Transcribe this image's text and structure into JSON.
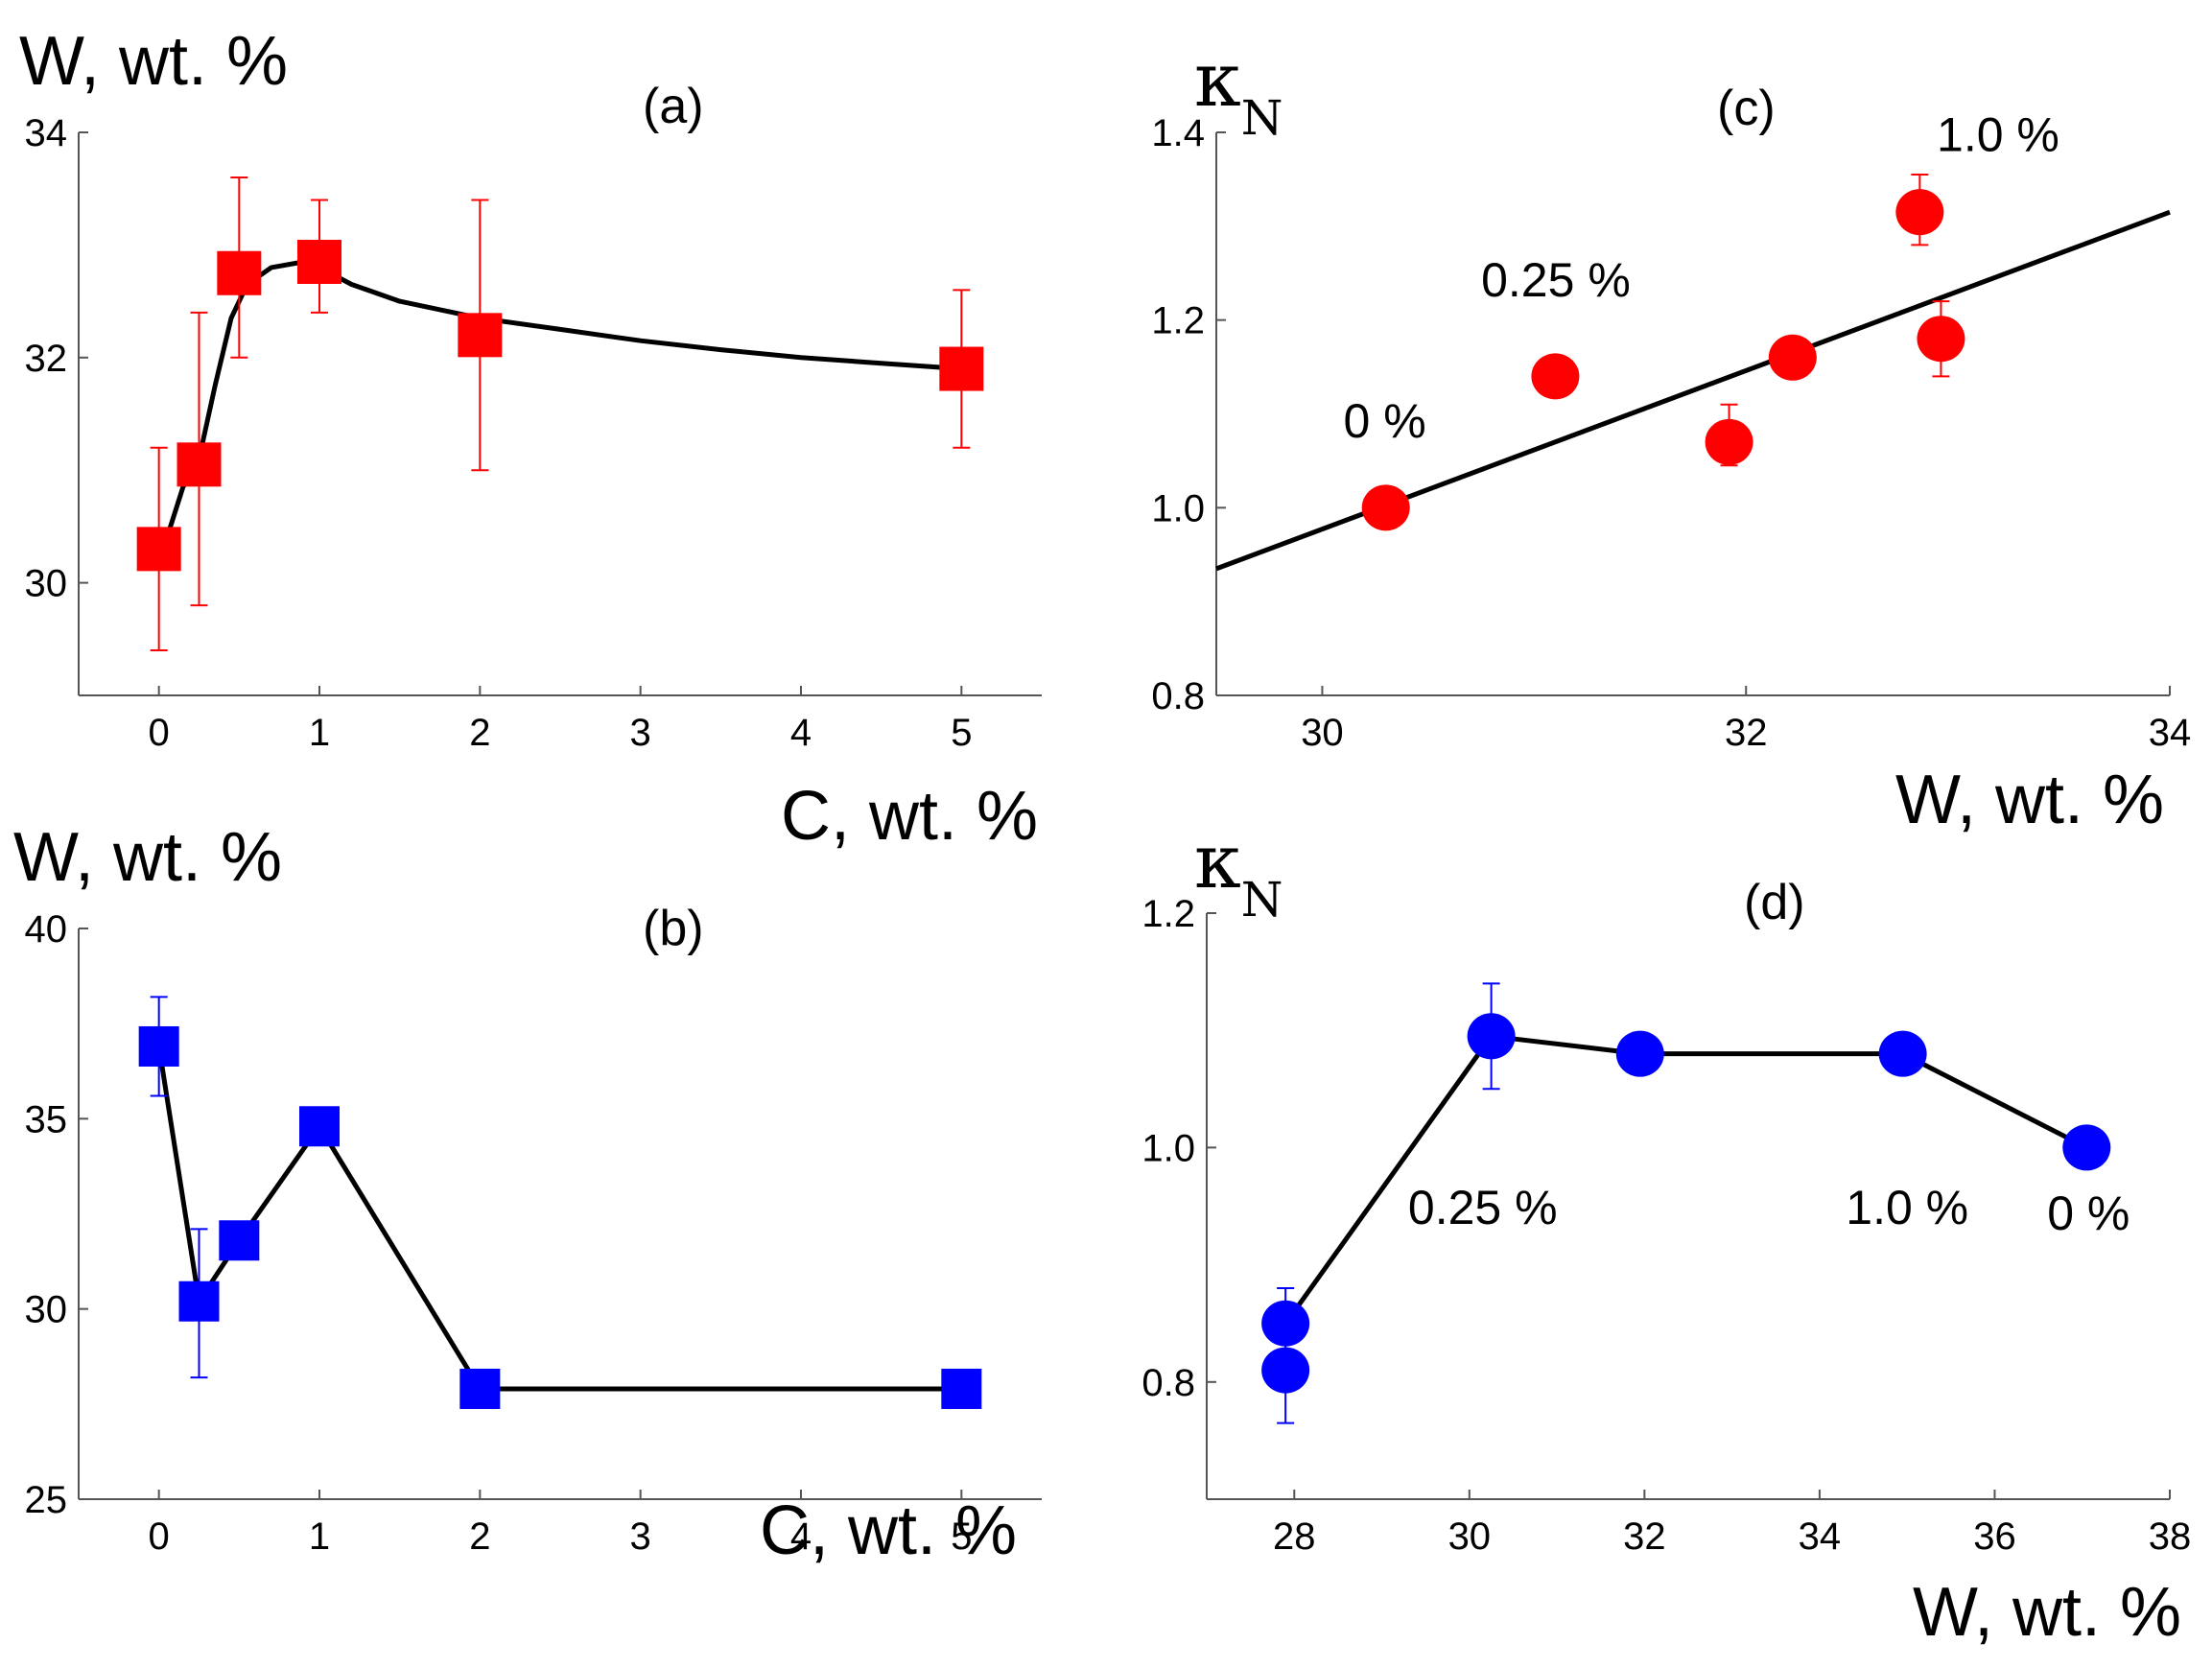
{
  "colors": {
    "red": "#ff0000",
    "blue": "#0000ff",
    "line": "#000000",
    "axis": "#555555"
  },
  "chart_data": [
    {
      "id": "a",
      "type": "scatter",
      "panel_label": "(a)",
      "ylabel": "W, wt. %",
      "xlabel": "C, wt. %",
      "xlim": [
        -0.5,
        5.5
      ],
      "ylim": [
        29,
        34
      ],
      "xticks": [
        0,
        1,
        2,
        3,
        4,
        5
      ],
      "xtick_labels": [
        "0",
        "1",
        "2",
        "3",
        "4",
        "5"
      ],
      "yticks": [
        30,
        32,
        34
      ],
      "ytick_labels": [
        "30",
        "32",
        "34"
      ],
      "marker": "square",
      "color": "red",
      "points": [
        {
          "x": 0,
          "y": 30.3,
          "err_low": 29.4,
          "err_high": 31.2
        },
        {
          "x": 0.25,
          "y": 31.05,
          "err_low": 29.8,
          "err_high": 32.4
        },
        {
          "x": 0.5,
          "y": 32.75,
          "err_low": 32.0,
          "err_high": 33.6
        },
        {
          "x": 1,
          "y": 32.85,
          "err_low": 32.4,
          "err_high": 33.4
        },
        {
          "x": 2,
          "y": 32.2,
          "err_low": 31.0,
          "err_high": 33.4
        },
        {
          "x": 5,
          "y": 31.9,
          "err_low": 31.2,
          "err_high": 32.6
        }
      ],
      "curve": {
        "x": [
          0.05,
          0.15,
          0.25,
          0.35,
          0.45,
          0.55,
          0.7,
          0.9,
          1.0,
          1.2,
          1.5,
          2.0,
          2.5,
          3.0,
          3.5,
          4.0,
          4.5,
          5.0
        ],
        "y": [
          30.4,
          30.85,
          31.1,
          31.75,
          32.35,
          32.65,
          32.8,
          32.85,
          32.8,
          32.65,
          32.5,
          32.35,
          32.25,
          32.15,
          32.07,
          32.0,
          31.95,
          31.9
        ]
      },
      "annotations": []
    },
    {
      "id": "b",
      "type": "line",
      "panel_label": "(b)",
      "ylabel": "W, wt. %",
      "xlabel": "C, wt. %",
      "xlim": [
        -0.5,
        5.5
      ],
      "ylim": [
        25,
        40
      ],
      "xticks": [
        0,
        1,
        2,
        3,
        4,
        5
      ],
      "xtick_labels": [
        "0",
        "1",
        "2",
        "3",
        "4",
        "5"
      ],
      "yticks": [
        25,
        30,
        35,
        40
      ],
      "ytick_labels": [
        "25",
        "30",
        "35",
        "40"
      ],
      "marker": "square",
      "color": "blue",
      "points": [
        {
          "x": 0,
          "y": 36.9,
          "err_low": 35.6,
          "err_high": 38.2
        },
        {
          "x": 0.25,
          "y": 30.2,
          "err_low": 28.2,
          "err_high": 32.1
        },
        {
          "x": 0.5,
          "y": 31.8
        },
        {
          "x": 1,
          "y": 34.8
        },
        {
          "x": 2,
          "y": 27.9
        },
        {
          "x": 5,
          "y": 27.9
        }
      ],
      "curve": {
        "x": [
          0,
          0.25,
          0.5,
          1,
          2,
          5
        ],
        "y": [
          36.9,
          30.2,
          31.8,
          34.8,
          27.9,
          27.9
        ]
      },
      "annotations": []
    },
    {
      "id": "c",
      "type": "scatter",
      "panel_label": "(c)",
      "ylabel": "κ",
      "ylabel_sub": "N",
      "xlabel": "W, wt. %",
      "xlim": [
        29.5,
        34
      ],
      "ylim": [
        0.8,
        1.4
      ],
      "xticks": [
        30,
        32,
        34
      ],
      "xtick_labels": [
        "30",
        "32",
        "34"
      ],
      "yticks": [
        0.8,
        1.0,
        1.2,
        1.4
      ],
      "ytick_labels": [
        "0.8",
        "1.0",
        "1.2",
        "1.4"
      ],
      "marker": "circle",
      "color": "red",
      "points": [
        {
          "x": 30.3,
          "y": 1.0
        },
        {
          "x": 31.1,
          "y": 1.14
        },
        {
          "x": 31.92,
          "y": 1.07,
          "err_low": 1.045,
          "err_high": 1.11
        },
        {
          "x": 32.22,
          "y": 1.16
        },
        {
          "x": 32.82,
          "y": 1.315,
          "err_low": 1.28,
          "err_high": 1.355
        },
        {
          "x": 32.92,
          "y": 1.18,
          "err_low": 1.14,
          "err_high": 1.22
        }
      ],
      "curve": {
        "x": [
          29.5,
          34
        ],
        "y": [
          0.935,
          1.315
        ]
      },
      "annotations": [
        {
          "text": "0 %",
          "x": 30.1,
          "y": 1.075
        },
        {
          "text": "0.25 %",
          "x": 30.75,
          "y": 1.225
        },
        {
          "text": "1.0 %",
          "x": 32.9,
          "y": 1.38
        }
      ]
    },
    {
      "id": "d",
      "type": "line",
      "panel_label": "(d)",
      "ylabel": "κ",
      "ylabel_sub": "N",
      "xlabel": "W, wt. %",
      "xlim": [
        27,
        38
      ],
      "ylim": [
        0.7,
        1.2
      ],
      "xticks": [
        28,
        30,
        32,
        34,
        36,
        38
      ],
      "xtick_labels": [
        "28",
        "30",
        "32",
        "34",
        "36",
        "38"
      ],
      "yticks": [
        0.8,
        1.0,
        1.2
      ],
      "ytick_labels": [
        "0.8",
        "1.0",
        "1.2"
      ],
      "marker": "circle",
      "color": "blue",
      "points": [
        {
          "x": 27.9,
          "y": 0.85,
          "err_low": 0.82,
          "err_high": 0.88
        },
        {
          "x": 27.9,
          "y": 0.81,
          "err_low": 0.765,
          "err_high": 0.84
        },
        {
          "x": 30.25,
          "y": 1.095,
          "err_low": 1.05,
          "err_high": 1.14
        },
        {
          "x": 31.95,
          "y": 1.08
        },
        {
          "x": 34.95,
          "y": 1.08
        },
        {
          "x": 37.05,
          "y": 1.0
        }
      ],
      "curve": {
        "x": [
          27.95,
          30.25,
          31.95,
          34.95,
          37.05
        ],
        "y": [
          0.855,
          1.095,
          1.08,
          1.08,
          1.0
        ]
      },
      "annotations": [
        {
          "text": "0.25 %",
          "x": 29.3,
          "y": 0.935
        },
        {
          "text": "1.0 %",
          "x": 34.3,
          "y": 0.935
        },
        {
          "text": "0 %",
          "x": 36.6,
          "y": 0.93
        }
      ]
    }
  ]
}
